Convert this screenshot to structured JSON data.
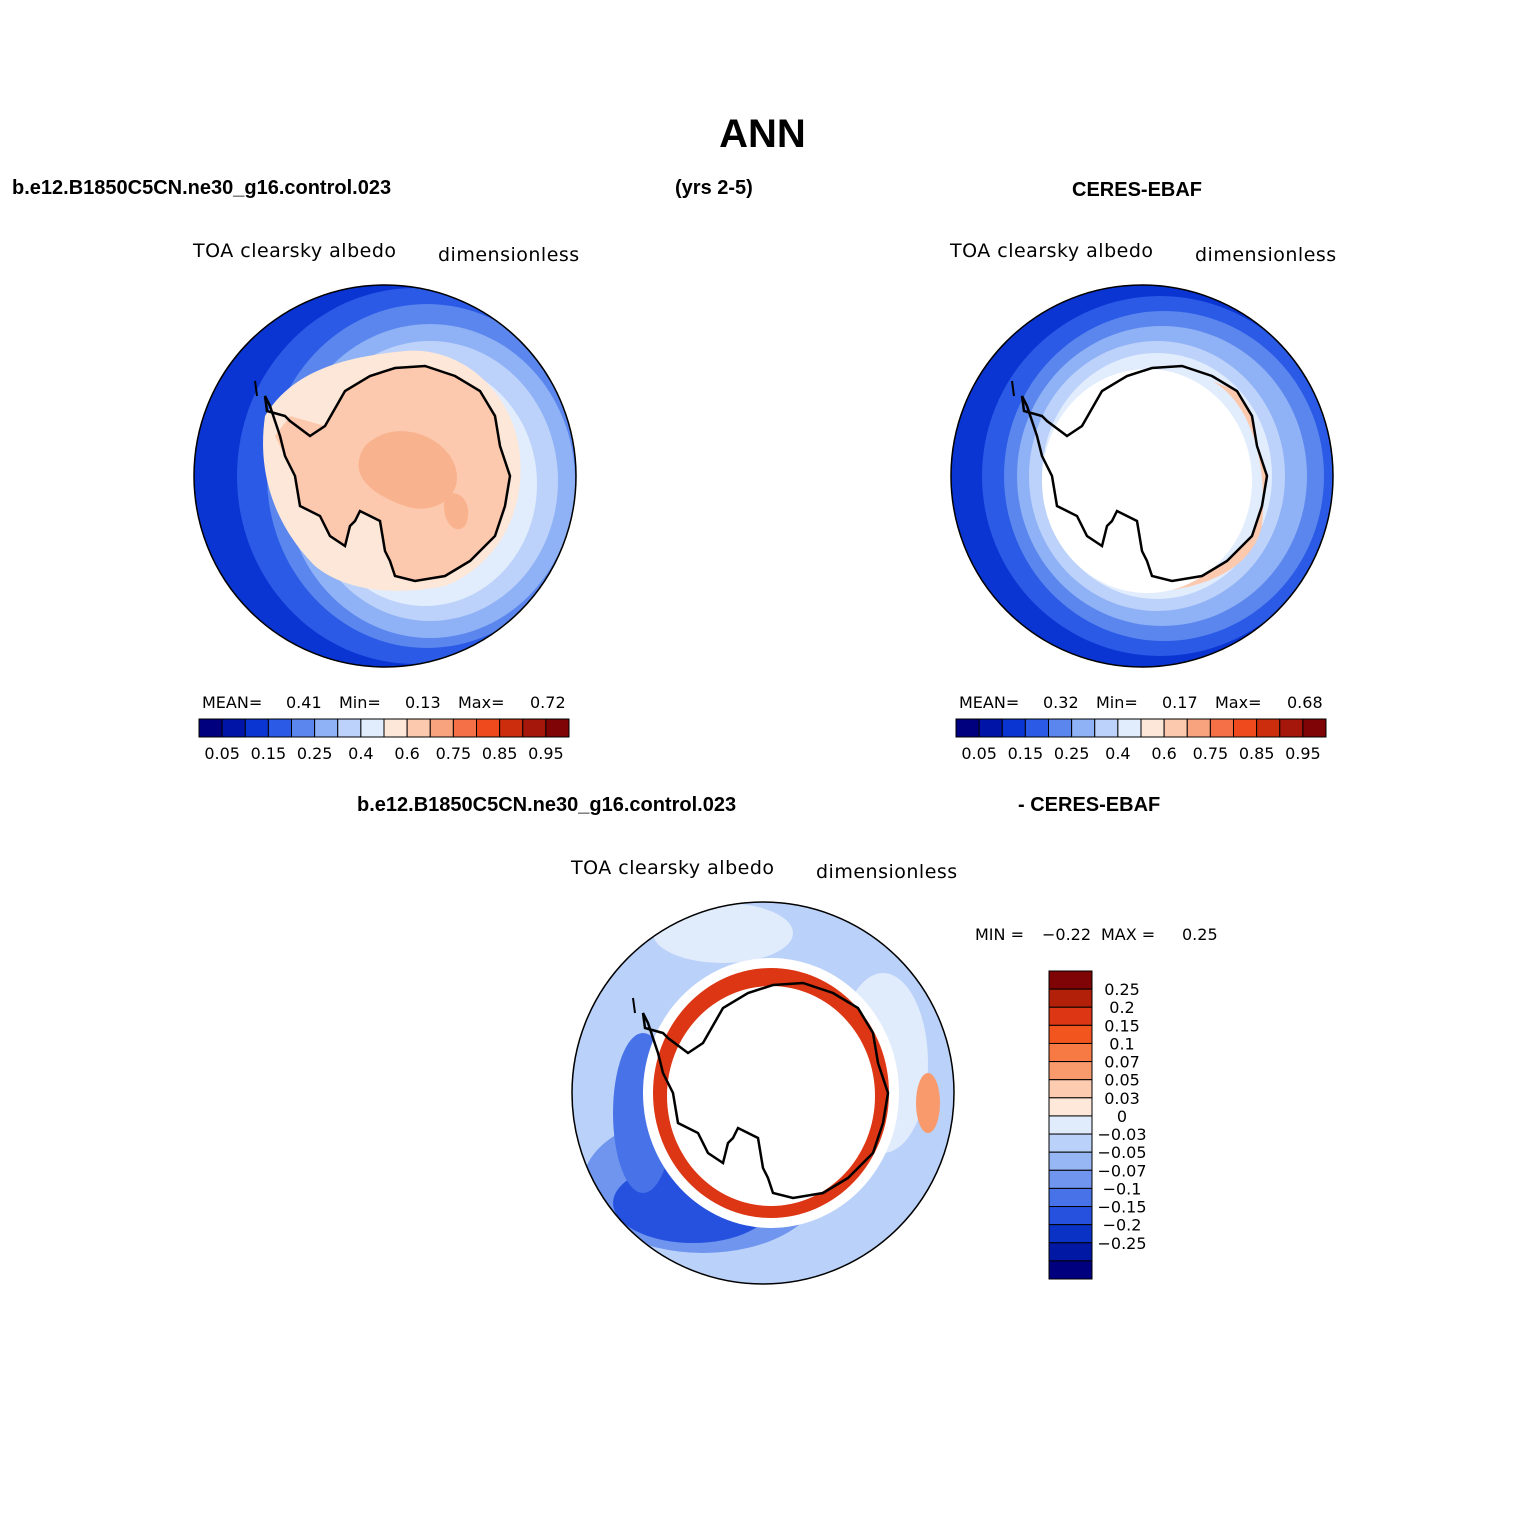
{
  "title": "ANN",
  "header": {
    "left": "b.e12.B1850C5CN.ne30_g16.control.023",
    "center": "(yrs 2-5)",
    "right": "CERES-EBAF"
  },
  "diff_header": {
    "left": "b.e12.B1850C5CN.ne30_g16.control.023",
    "right": "- CERES-EBAF"
  },
  "panels": [
    {
      "variable": "TOA clearsky albedo",
      "units": "dimensionless",
      "stats": {
        "mean_label": "MEAN=",
        "mean": "0.41",
        "min_label": "Min=",
        "min": "0.13",
        "max_label": "Max=",
        "max": "0.72"
      }
    },
    {
      "variable": "TOA clearsky albedo",
      "units": "dimensionless",
      "stats": {
        "mean_label": "MEAN=",
        "mean": "0.32",
        "min_label": "Min=",
        "min": "0.17",
        "max_label": "Max=",
        "max": "0.68"
      }
    },
    {
      "variable": "TOA clearsky albedo",
      "units": "dimensionless",
      "stats": {
        "min_label": "MIN =",
        "min": "−0.22",
        "max_label": "MAX =",
        "max": "0.25"
      }
    }
  ],
  "colorbar_abs": {
    "colors": [
      "#00007f",
      "#0015a8",
      "#0a35d2",
      "#2a5ae6",
      "#5a86ee",
      "#8fb1f5",
      "#bcd2fa",
      "#e1ecfd",
      "#fde7d8",
      "#fdc9ae",
      "#f9a27e",
      "#f56f47",
      "#ee4a1d",
      "#cc2d0c",
      "#a5170a",
      "#7e0405"
    ],
    "labels": [
      "0.05",
      "0.15",
      "0.25",
      "0.4",
      "0.6",
      "0.75",
      "0.85",
      "0.95"
    ]
  },
  "colorbar_diff": {
    "colors": [
      "#7e0405",
      "#b2200a",
      "#dc3614",
      "#f3551f",
      "#f77a45",
      "#f99a6c",
      "#fccbb0",
      "#fde8da",
      "#e0ebfc",
      "#bad1fa",
      "#97b6f4",
      "#6f95ee",
      "#4873e8",
      "#2551de",
      "#0a33c6",
      "#0018a4",
      "#00007f"
    ],
    "labels": [
      "0.25",
      "0.2",
      "0.15",
      "0.1",
      "0.07",
      "0.05",
      "0.03",
      "0",
      "−0.03",
      "−0.05",
      "−0.07",
      "−0.1",
      "−0.15",
      "−0.2",
      "−0.25"
    ]
  }
}
